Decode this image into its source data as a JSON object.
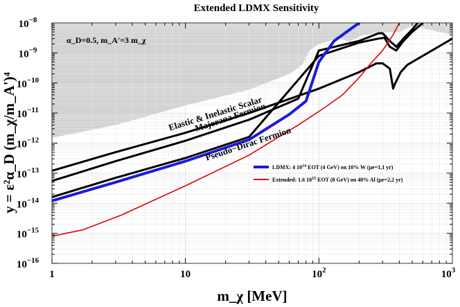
{
  "chart_data": {
    "type": "line",
    "title": "Extended LDMX Sensitivity",
    "xlabel": "m_χ [MeV]",
    "ylabel": "y = ε²α_D (m_χ/m_A')⁴",
    "xscale": "log",
    "yscale": "log",
    "xlim": [
      1,
      1000
    ],
    "ylim": [
      1e-16,
      1e-08
    ],
    "x_ticks": [
      {
        "value": 1,
        "label": "1"
      },
      {
        "value": 10,
        "label": "10"
      },
      {
        "value": 100,
        "label": "10",
        "exp": "2"
      },
      {
        "value": 1000,
        "label": "10",
        "exp": "3"
      }
    ],
    "y_ticks": [
      {
        "value": 1e-16,
        "label": "10",
        "exp": "−16"
      },
      {
        "value": 1e-15,
        "label": "10",
        "exp": "−15"
      },
      {
        "value": 1e-14,
        "label": "10",
        "exp": "−14"
      },
      {
        "value": 1e-13,
        "label": "10",
        "exp": "−13"
      },
      {
        "value": 1e-12,
        "label": "10",
        "exp": "−12"
      },
      {
        "value": 1e-11,
        "label": "10",
        "exp": "−11"
      },
      {
        "value": 1e-10,
        "label": "10",
        "exp": "−10"
      },
      {
        "value": 1e-09,
        "label": "10",
        "exp": "−9"
      },
      {
        "value": 1e-08,
        "label": "10",
        "exp": "−8"
      }
    ],
    "parameter_text": "α_D=0.5, m_A'=3 m_χ",
    "excluded_region": {
      "name": "excluded",
      "color": "#d3d3d3",
      "boundary": [
        [
          1,
          1.5e-12
        ],
        [
          3,
          4e-12
        ],
        [
          10,
          1.8e-11
        ],
        [
          30,
          6e-11
        ],
        [
          60,
          2e-10
        ],
        [
          75,
          4e-10
        ],
        [
          85,
          1.2e-09
        ],
        [
          100,
          2e-09
        ],
        [
          140,
          3e-09
        ],
        [
          170,
          2.4e-09
        ],
        [
          210,
          3.8e-09
        ],
        [
          290,
          4.8e-09
        ],
        [
          400,
          5e-09
        ],
        [
          500,
          8e-09
        ],
        [
          1000,
          4e-09
        ]
      ]
    },
    "series": [
      {
        "name": "Elastic & Inelastic Scalar",
        "color": "#000000",
        "width": 3,
        "points": [
          [
            1,
            1.2e-13
          ],
          [
            3,
            5e-13
          ],
          [
            10,
            2.2e-12
          ],
          [
            30,
            1e-11
          ],
          [
            100,
            6.5e-11
          ],
          [
            200,
            2.3e-10
          ],
          [
            270,
            4.5e-10
          ],
          [
            300,
            4.5e-10
          ],
          [
            340,
            3e-10
          ],
          [
            360,
            6.5e-11
          ],
          [
            370,
            9e-11
          ],
          [
            410,
            2.3e-10
          ],
          [
            460,
            4e-10
          ],
          [
            1000,
            3e-09
          ]
        ]
      },
      {
        "name": "Majorana Fermion",
        "color": "#000000",
        "width": 3,
        "points": [
          [
            1,
            5.5e-14
          ],
          [
            3,
            2.5e-13
          ],
          [
            10,
            1.2e-12
          ],
          [
            30,
            6e-12
          ],
          [
            70,
            3e-11
          ],
          [
            100,
            1.2e-09
          ],
          [
            200,
            2.5e-09
          ],
          [
            280,
            4.5e-09
          ],
          [
            300,
            4.5e-09
          ],
          [
            340,
            2.5e-09
          ],
          [
            380,
            1.6e-09
          ],
          [
            430,
            3e-09
          ],
          [
            500,
            6e-09
          ],
          [
            550,
            1e-08
          ]
        ]
      },
      {
        "name": "Pseudo-Dirac Fermion",
        "color": "#000000",
        "width": 3,
        "points": [
          [
            1,
            1.6e-14
          ],
          [
            3,
            7e-14
          ],
          [
            10,
            3.2e-13
          ],
          [
            30,
            1.6e-12
          ],
          [
            100,
            8e-10
          ],
          [
            200,
            2.2e-09
          ],
          [
            280,
            3e-09
          ],
          [
            310,
            3.2e-09
          ],
          [
            340,
            1.6e-09
          ],
          [
            380,
            1.2e-09
          ],
          [
            430,
            2.5e-09
          ],
          [
            500,
            5e-09
          ],
          [
            600,
            1e-08
          ]
        ]
      },
      {
        "name": "LDMX: 4 10^14 EOT (4 GeV) on 10% W (μe=1,1 yr)",
        "color": "#1a1adc",
        "width": 4,
        "points": [
          [
            1,
            1.2e-14
          ],
          [
            3,
            5e-14
          ],
          [
            10,
            2.5e-13
          ],
          [
            30,
            1.3e-12
          ],
          [
            60,
            9e-12
          ],
          [
            80,
            2.5e-11
          ],
          [
            100,
            5e-10
          ],
          [
            130,
            2.5e-09
          ],
          [
            200,
            1e-08
          ]
        ]
      },
      {
        "name": "Extended: 1.6 10^15 EOT (8 GeV) on 40% Al (μe=2,2 yr)",
        "color": "#e00000",
        "width": 1.6,
        "points": [
          [
            1,
            8e-16
          ],
          [
            1.7,
            1.3e-15
          ],
          [
            3.3,
            4e-15
          ],
          [
            10,
            3.8e-14
          ],
          [
            30,
            4e-13
          ],
          [
            70,
            4e-12
          ],
          [
            110,
            1.5e-11
          ],
          [
            150,
            4e-11
          ],
          [
            200,
            1.5e-10
          ],
          [
            250,
            5e-10
          ],
          [
            300,
            1.2e-09
          ],
          [
            360,
            4e-09
          ],
          [
            400,
            1e-08
          ]
        ]
      }
    ],
    "curve_labels": [
      {
        "text": "Elastic & Inelastic Scalar",
        "series": 0
      },
      {
        "text": "Majorana Fermion",
        "series": 1
      },
      {
        "text": "Pseudo−Dirac Fermion",
        "series": 2
      }
    ],
    "legend": [
      {
        "text": "LDMX: 4 10",
        "sup": "14",
        "rest": " EOT (4 GeV) on 10% W (μe=1,1 yr)",
        "color": "#1a1adc"
      },
      {
        "text": "Extended: 1.6 10",
        "sup": "15",
        "rest": " EOT (8 GeV) on 40% Al (μe=2,2 yr)",
        "color": "#e00000"
      }
    ]
  }
}
